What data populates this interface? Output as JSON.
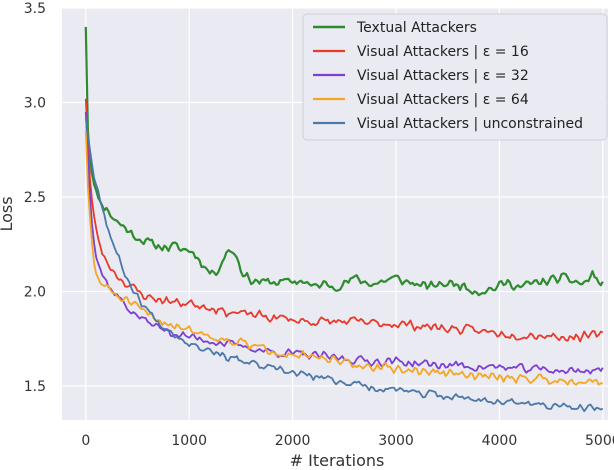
{
  "chart_data": {
    "type": "line",
    "title": "",
    "xlabel": "# Iterations",
    "ylabel": "Loss",
    "xlim": [
      -230,
      5050
    ],
    "ylim": [
      1.32,
      3.5
    ],
    "x_ticks": [
      0,
      1000,
      2000,
      3000,
      4000,
      5000
    ],
    "y_ticks": [
      1.5,
      2.0,
      2.5,
      3.0,
      3.5
    ],
    "x_tick_labels": [
      "0",
      "1000",
      "2000",
      "3000",
      "4000",
      "5000"
    ],
    "y_tick_labels": [
      "1.5",
      "2.0",
      "2.5",
      "3.0",
      "3.5"
    ],
    "grid": true,
    "legend_position": "top-right",
    "background": "#eaeaf2",
    "series": [
      {
        "name": "Textual Attackers",
        "color": "#2e8b2e",
        "linewidth": 2.2,
        "points": [
          [
            0,
            3.4
          ],
          [
            10,
            3.05
          ],
          [
            20,
            2.85
          ],
          [
            40,
            2.72
          ],
          [
            60,
            2.64
          ],
          [
            80,
            2.57
          ],
          [
            100,
            2.52
          ],
          [
            130,
            2.49
          ],
          [
            160,
            2.46
          ],
          [
            200,
            2.44
          ],
          [
            250,
            2.4
          ],
          [
            300,
            2.37
          ],
          [
            350,
            2.35
          ],
          [
            400,
            2.33
          ],
          [
            450,
            2.3
          ],
          [
            500,
            2.29
          ],
          [
            550,
            2.27
          ],
          [
            600,
            2.26
          ],
          [
            650,
            2.25
          ],
          [
            700,
            2.24
          ],
          [
            750,
            2.24
          ],
          [
            800,
            2.23
          ],
          [
            850,
            2.24
          ],
          [
            900,
            2.23
          ],
          [
            950,
            2.22
          ],
          [
            1000,
            2.22
          ],
          [
            1050,
            2.2
          ],
          [
            1100,
            2.17
          ],
          [
            1150,
            2.13
          ],
          [
            1200,
            2.1
          ],
          [
            1250,
            2.1
          ],
          [
            1300,
            2.14
          ],
          [
            1350,
            2.2
          ],
          [
            1400,
            2.22
          ],
          [
            1450,
            2.2
          ],
          [
            1500,
            2.12
          ],
          [
            1550,
            2.08
          ],
          [
            1600,
            2.06
          ],
          [
            1700,
            2.05
          ],
          [
            1800,
            2.05
          ],
          [
            1900,
            2.05
          ],
          [
            2000,
            2.05
          ],
          [
            2100,
            2.06
          ],
          [
            2200,
            2.02
          ],
          [
            2300,
            2.04
          ],
          [
            2400,
            2.03
          ],
          [
            2500,
            2.04
          ],
          [
            2600,
            2.07
          ],
          [
            2700,
            2.05
          ],
          [
            2800,
            2.04
          ],
          [
            2900,
            2.06
          ],
          [
            3000,
            2.07
          ],
          [
            3100,
            2.05
          ],
          [
            3200,
            2.04
          ],
          [
            3300,
            2.02
          ],
          [
            3400,
            2.04
          ],
          [
            3500,
            2.04
          ],
          [
            3600,
            2.04
          ],
          [
            3700,
            2.02
          ],
          [
            3800,
            2.0
          ],
          [
            3900,
            2.01
          ],
          [
            4000,
            2.03
          ],
          [
            4100,
            2.05
          ],
          [
            4200,
            2.02
          ],
          [
            4300,
            2.04
          ],
          [
            4400,
            2.05
          ],
          [
            4500,
            2.06
          ],
          [
            4600,
            2.07
          ],
          [
            4700,
            2.06
          ],
          [
            4800,
            2.04
          ],
          [
            4850,
            2.05
          ],
          [
            4900,
            2.1
          ],
          [
            4950,
            2.05
          ],
          [
            5000,
            2.04
          ]
        ],
        "noise": 0.03,
        "seed": 11
      },
      {
        "name": "Visual Attackers | ε = 16",
        "color": "#e8392b",
        "linewidth": 1.8,
        "points": [
          [
            0,
            3.02
          ],
          [
            20,
            2.78
          ],
          [
            40,
            2.6
          ],
          [
            60,
            2.48
          ],
          [
            80,
            2.39
          ],
          [
            100,
            2.32
          ],
          [
            130,
            2.26
          ],
          [
            160,
            2.2
          ],
          [
            200,
            2.16
          ],
          [
            250,
            2.12
          ],
          [
            300,
            2.09
          ],
          [
            350,
            2.06
          ],
          [
            400,
            2.04
          ],
          [
            450,
            2.02
          ],
          [
            500,
            2.0
          ],
          [
            600,
            1.97
          ],
          [
            700,
            1.96
          ],
          [
            800,
            1.95
          ],
          [
            900,
            1.94
          ],
          [
            1000,
            1.94
          ],
          [
            1100,
            1.93
          ],
          [
            1200,
            1.92
          ],
          [
            1300,
            1.9
          ],
          [
            1400,
            1.89
          ],
          [
            1500,
            1.88
          ],
          [
            1600,
            1.88
          ],
          [
            1700,
            1.87
          ],
          [
            1800,
            1.86
          ],
          [
            1900,
            1.86
          ],
          [
            2000,
            1.85
          ],
          [
            2200,
            1.84
          ],
          [
            2400,
            1.84
          ],
          [
            2600,
            1.84
          ],
          [
            2800,
            1.83
          ],
          [
            3000,
            1.83
          ],
          [
            3200,
            1.82
          ],
          [
            3400,
            1.81
          ],
          [
            3600,
            1.8
          ],
          [
            3800,
            1.79
          ],
          [
            4000,
            1.78
          ],
          [
            4200,
            1.77
          ],
          [
            4400,
            1.77
          ],
          [
            4600,
            1.76
          ],
          [
            4800,
            1.76
          ],
          [
            5000,
            1.77
          ]
        ],
        "noise": 0.03,
        "seed": 23
      },
      {
        "name": "Visual Attackers | ε = 32",
        "color": "#7b3fd4",
        "linewidth": 1.8,
        "points": [
          [
            0,
            2.95
          ],
          [
            20,
            2.7
          ],
          [
            40,
            2.52
          ],
          [
            60,
            2.38
          ],
          [
            80,
            2.28
          ],
          [
            100,
            2.2
          ],
          [
            130,
            2.14
          ],
          [
            160,
            2.09
          ],
          [
            200,
            2.05
          ],
          [
            250,
            2.01
          ],
          [
            300,
            1.98
          ],
          [
            350,
            1.95
          ],
          [
            400,
            1.92
          ],
          [
            450,
            1.89
          ],
          [
            500,
            1.87
          ],
          [
            600,
            1.84
          ],
          [
            700,
            1.81
          ],
          [
            800,
            1.79
          ],
          [
            900,
            1.77
          ],
          [
            1000,
            1.76
          ],
          [
            1100,
            1.75
          ],
          [
            1200,
            1.74
          ],
          [
            1300,
            1.73
          ],
          [
            1400,
            1.72
          ],
          [
            1500,
            1.71
          ],
          [
            1600,
            1.7
          ],
          [
            1700,
            1.69
          ],
          [
            1800,
            1.68
          ],
          [
            2000,
            1.67
          ],
          [
            2200,
            1.66
          ],
          [
            2400,
            1.65
          ],
          [
            2600,
            1.64
          ],
          [
            2800,
            1.63
          ],
          [
            3000,
            1.63
          ],
          [
            3200,
            1.62
          ],
          [
            3400,
            1.61
          ],
          [
            3600,
            1.61
          ],
          [
            3800,
            1.6
          ],
          [
            4000,
            1.6
          ],
          [
            4200,
            1.59
          ],
          [
            4400,
            1.59
          ],
          [
            4600,
            1.58
          ],
          [
            4800,
            1.58
          ],
          [
            5000,
            1.59
          ]
        ],
        "noise": 0.028,
        "seed": 37
      },
      {
        "name": "Visual Attackers | ε = 64",
        "color": "#f5a623",
        "linewidth": 1.8,
        "points": [
          [
            0,
            2.85
          ],
          [
            20,
            2.55
          ],
          [
            40,
            2.38
          ],
          [
            60,
            2.25
          ],
          [
            80,
            2.15
          ],
          [
            100,
            2.09
          ],
          [
            130,
            2.06
          ],
          [
            160,
            2.04
          ],
          [
            200,
            2.02
          ],
          [
            250,
            2.0
          ],
          [
            300,
            1.98
          ],
          [
            350,
            1.96
          ],
          [
            400,
            1.95
          ],
          [
            450,
            1.93
          ],
          [
            500,
            1.91
          ],
          [
            600,
            1.88
          ],
          [
            700,
            1.85
          ],
          [
            800,
            1.83
          ],
          [
            900,
            1.82
          ],
          [
            1000,
            1.8
          ],
          [
            1100,
            1.78
          ],
          [
            1200,
            1.77
          ],
          [
            1300,
            1.75
          ],
          [
            1400,
            1.74
          ],
          [
            1500,
            1.73
          ],
          [
            1600,
            1.71
          ],
          [
            1700,
            1.7
          ],
          [
            1800,
            1.69
          ],
          [
            2000,
            1.67
          ],
          [
            2200,
            1.65
          ],
          [
            2400,
            1.63
          ],
          [
            2600,
            1.61
          ],
          [
            2800,
            1.6
          ],
          [
            3000,
            1.59
          ],
          [
            3200,
            1.58
          ],
          [
            3400,
            1.57
          ],
          [
            3600,
            1.56
          ],
          [
            3800,
            1.55
          ],
          [
            4000,
            1.55
          ],
          [
            4200,
            1.54
          ],
          [
            4400,
            1.54
          ],
          [
            4600,
            1.53
          ],
          [
            4800,
            1.53
          ],
          [
            5000,
            1.52
          ]
        ],
        "noise": 0.03,
        "seed": 51
      },
      {
        "name": "Visual Attackers | unconstrained",
        "color": "#4c78a8",
        "linewidth": 1.8,
        "points": [
          [
            0,
            2.92
          ],
          [
            20,
            2.82
          ],
          [
            40,
            2.75
          ],
          [
            60,
            2.68
          ],
          [
            80,
            2.62
          ],
          [
            100,
            2.57
          ],
          [
            130,
            2.52
          ],
          [
            160,
            2.45
          ],
          [
            200,
            2.36
          ],
          [
            250,
            2.28
          ],
          [
            300,
            2.2
          ],
          [
            350,
            2.13
          ],
          [
            400,
            2.07
          ],
          [
            450,
            2.02
          ],
          [
            500,
            1.97
          ],
          [
            600,
            1.9
          ],
          [
            700,
            1.84
          ],
          [
            800,
            1.8
          ],
          [
            900,
            1.76
          ],
          [
            1000,
            1.73
          ],
          [
            1100,
            1.71
          ],
          [
            1200,
            1.69
          ],
          [
            1300,
            1.67
          ],
          [
            1400,
            1.65
          ],
          [
            1500,
            1.63
          ],
          [
            1600,
            1.62
          ],
          [
            1700,
            1.6
          ],
          [
            1800,
            1.59
          ],
          [
            2000,
            1.57
          ],
          [
            2200,
            1.55
          ],
          [
            2400,
            1.53
          ],
          [
            2600,
            1.51
          ],
          [
            2800,
            1.49
          ],
          [
            3000,
            1.48
          ],
          [
            3200,
            1.46
          ],
          [
            3400,
            1.45
          ],
          [
            3600,
            1.44
          ],
          [
            3800,
            1.43
          ],
          [
            4000,
            1.42
          ],
          [
            4200,
            1.41
          ],
          [
            4400,
            1.4
          ],
          [
            4600,
            1.39
          ],
          [
            4800,
            1.38
          ],
          [
            5000,
            1.38
          ]
        ],
        "noise": 0.025,
        "seed": 67
      }
    ]
  }
}
